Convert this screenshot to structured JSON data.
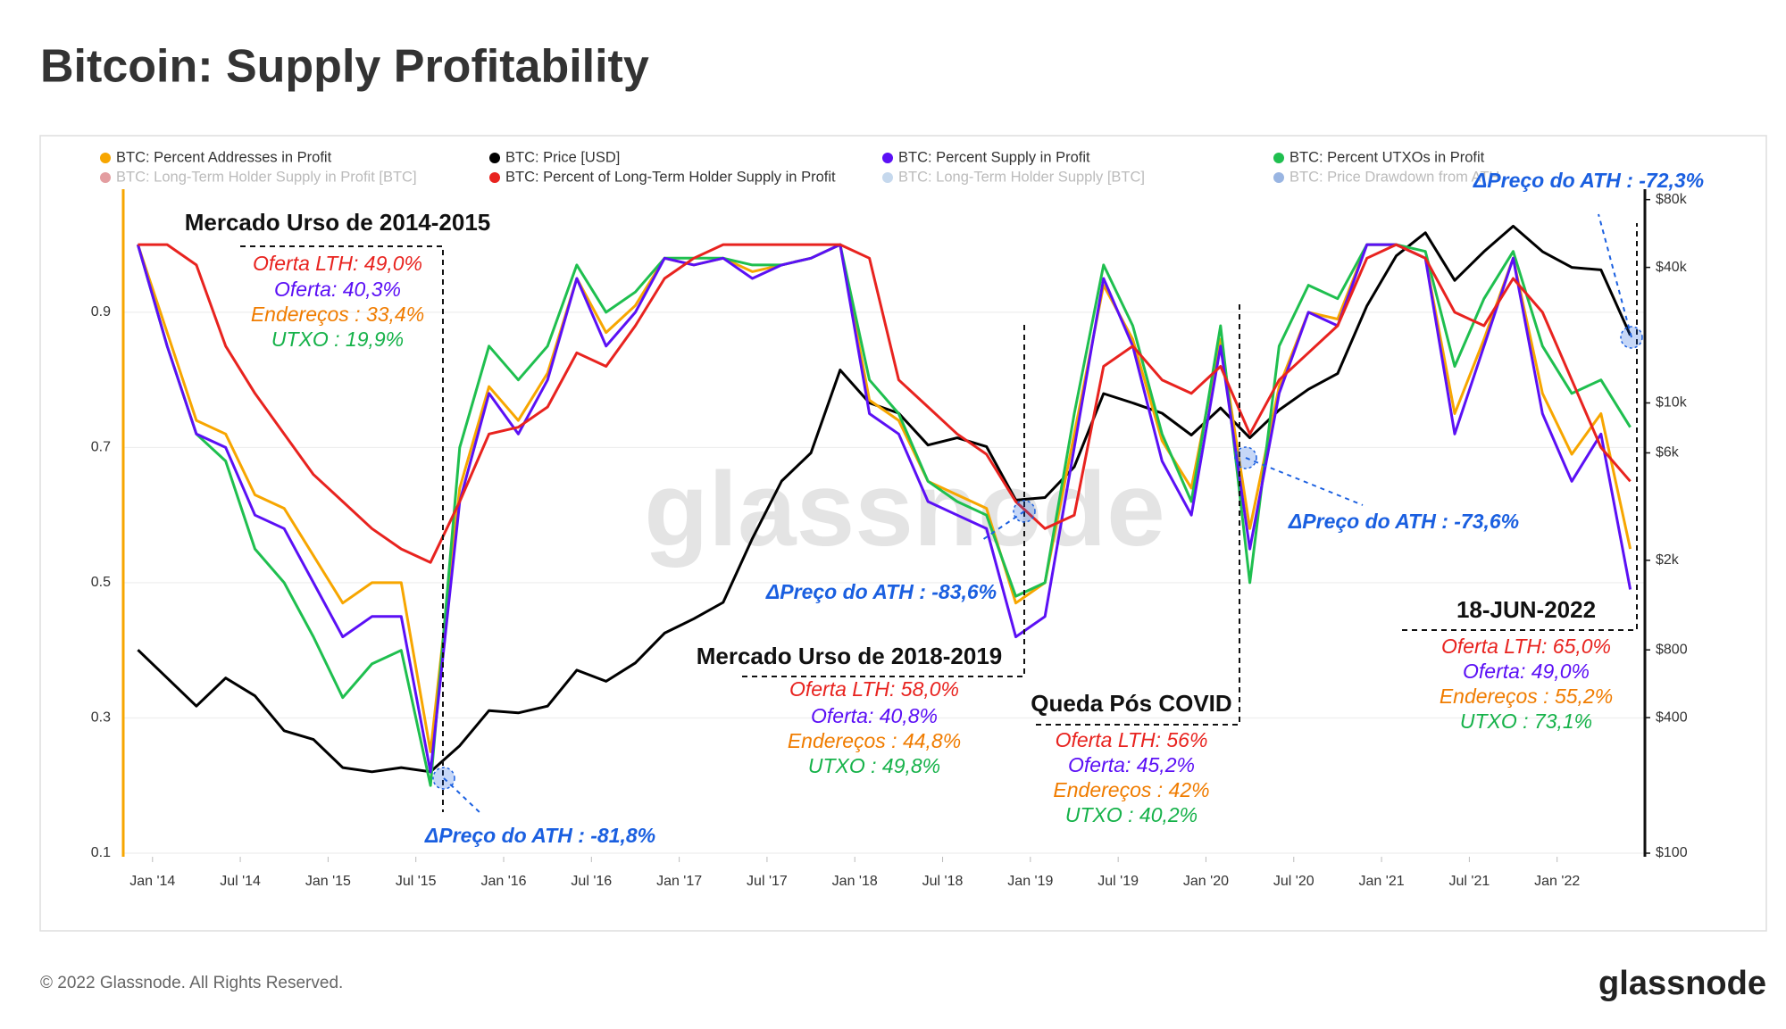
{
  "title": "Bitcoin: Supply Profitability",
  "footer": "© 2022 Glassnode. All Rights Reserved.",
  "logo": "glassnode",
  "watermark": "glassnode",
  "chart_data": {
    "type": "line",
    "x": [
      "2013-12",
      "2014-02",
      "2014-04",
      "2014-06",
      "2014-08",
      "2014-10",
      "2014-12",
      "2015-02",
      "2015-04",
      "2015-06",
      "2015-08",
      "2015-10",
      "2015-12",
      "2016-02",
      "2016-04",
      "2016-06",
      "2016-08",
      "2016-10",
      "2016-12",
      "2017-02",
      "2017-04",
      "2017-06",
      "2017-08",
      "2017-10",
      "2017-12",
      "2018-02",
      "2018-04",
      "2018-06",
      "2018-08",
      "2018-10",
      "2018-12",
      "2019-02",
      "2019-04",
      "2019-06",
      "2019-08",
      "2019-10",
      "2019-12",
      "2020-02",
      "2020-04",
      "2020-06",
      "2020-08",
      "2020-10",
      "2020-12",
      "2021-02",
      "2021-04",
      "2021-06",
      "2021-08",
      "2021-10",
      "2021-12",
      "2022-02",
      "2022-04",
      "2022-06"
    ],
    "series": [
      {
        "name": "BTC: Percent Addresses in Profit",
        "color": "#f7a600",
        "values": [
          1.0,
          0.87,
          0.74,
          0.72,
          0.63,
          0.61,
          0.54,
          0.47,
          0.5,
          0.5,
          0.25,
          0.64,
          0.79,
          0.74,
          0.81,
          0.95,
          0.87,
          0.91,
          0.98,
          0.97,
          0.98,
          0.96,
          0.97,
          0.98,
          1.0,
          0.77,
          0.74,
          0.65,
          0.63,
          0.61,
          0.47,
          0.5,
          0.72,
          0.94,
          0.86,
          0.71,
          0.64,
          0.86,
          0.58,
          0.79,
          0.9,
          0.89,
          1.0,
          1.0,
          0.98,
          0.75,
          0.86,
          0.98,
          0.78,
          0.69,
          0.75,
          0.55
        ]
      },
      {
        "name": "BTC: Price [USD]",
        "color": "#000000",
        "axis": "y2",
        "values": [
          800,
          600,
          450,
          600,
          500,
          350,
          320,
          240,
          230,
          240,
          230,
          300,
          430,
          420,
          450,
          650,
          580,
          700,
          950,
          1100,
          1300,
          2500,
          4500,
          6000,
          14000,
          10000,
          9000,
          6500,
          7000,
          6400,
          3700,
          3800,
          5200,
          11000,
          10000,
          9000,
          7200,
          9500,
          7000,
          9300,
          11500,
          13500,
          27000,
          45000,
          57000,
          35000,
          47000,
          61000,
          47000,
          40000,
          39000,
          20000
        ]
      },
      {
        "name": "BTC: Percent Supply in Profit",
        "color": "#5b10f5",
        "values": [
          1.0,
          0.85,
          0.72,
          0.7,
          0.6,
          0.58,
          0.5,
          0.42,
          0.45,
          0.45,
          0.22,
          0.62,
          0.78,
          0.72,
          0.8,
          0.95,
          0.85,
          0.9,
          0.98,
          0.97,
          0.98,
          0.95,
          0.97,
          0.98,
          1.0,
          0.75,
          0.72,
          0.62,
          0.6,
          0.58,
          0.42,
          0.45,
          0.7,
          0.95,
          0.85,
          0.68,
          0.6,
          0.85,
          0.55,
          0.78,
          0.9,
          0.88,
          1.0,
          1.0,
          0.98,
          0.72,
          0.85,
          0.98,
          0.75,
          0.65,
          0.72,
          0.49
        ]
      },
      {
        "name": "BTC: Percent UTXOs in Profit",
        "color": "#1fbf4f",
        "values": [
          1.0,
          0.85,
          0.72,
          0.68,
          0.55,
          0.5,
          0.42,
          0.33,
          0.38,
          0.4,
          0.2,
          0.7,
          0.85,
          0.8,
          0.85,
          0.97,
          0.9,
          0.93,
          0.98,
          0.98,
          0.98,
          0.97,
          0.97,
          0.98,
          1.0,
          0.8,
          0.75,
          0.65,
          0.62,
          0.6,
          0.48,
          0.5,
          0.75,
          0.97,
          0.88,
          0.72,
          0.62,
          0.88,
          0.5,
          0.85,
          0.94,
          0.92,
          1.0,
          1.0,
          0.99,
          0.82,
          0.92,
          0.99,
          0.85,
          0.78,
          0.8,
          0.73
        ]
      },
      {
        "name": "BTC: Percent of Long-Term Holder Supply in Profit",
        "color": "#e8231f",
        "values": [
          1.0,
          1.0,
          0.97,
          0.85,
          0.78,
          0.72,
          0.66,
          0.62,
          0.58,
          0.55,
          0.53,
          0.62,
          0.72,
          0.73,
          0.76,
          0.84,
          0.82,
          0.88,
          0.95,
          0.98,
          1.0,
          1.0,
          1.0,
          1.0,
          1.0,
          0.98,
          0.8,
          0.76,
          0.72,
          0.69,
          0.62,
          0.58,
          0.6,
          0.82,
          0.85,
          0.8,
          0.78,
          0.82,
          0.72,
          0.8,
          0.84,
          0.88,
          0.98,
          1.0,
          0.98,
          0.9,
          0.88,
          0.95,
          0.9,
          0.8,
          0.7,
          0.65
        ]
      }
    ],
    "hidden_series": [
      {
        "name": "BTC: Long-Term Holder Supply in Profit [BTC]",
        "color": "#c0262d"
      },
      {
        "name": "BTC: Long-Term Holder Supply [BTC]",
        "color": "#7fa8d6"
      },
      {
        "name": "BTC: Price Drawdown from ATH",
        "color": "#1d5bbf"
      }
    ],
    "xlim": [
      "2013-11",
      "2022-07"
    ],
    "xticks": [
      {
        "value": "2014-01",
        "label": "Jan '14"
      },
      {
        "value": "2014-07",
        "label": "Jul '14"
      },
      {
        "value": "2015-01",
        "label": "Jan '15"
      },
      {
        "value": "2015-07",
        "label": "Jul '15"
      },
      {
        "value": "2016-01",
        "label": "Jan '16"
      },
      {
        "value": "2016-07",
        "label": "Jul '16"
      },
      {
        "value": "2017-01",
        "label": "Jan '17"
      },
      {
        "value": "2017-07",
        "label": "Jul '17"
      },
      {
        "value": "2018-01",
        "label": "Jan '18"
      },
      {
        "value": "2018-07",
        "label": "Jul '18"
      },
      {
        "value": "2019-01",
        "label": "Jan '19"
      },
      {
        "value": "2019-07",
        "label": "Jul '19"
      },
      {
        "value": "2020-01",
        "label": "Jan '20"
      },
      {
        "value": "2020-07",
        "label": "Jul '20"
      },
      {
        "value": "2021-01",
        "label": "Jan '21"
      },
      {
        "value": "2021-07",
        "label": "Jul '21"
      },
      {
        "value": "2022-01",
        "label": "Jan '22"
      }
    ],
    "ylim": [
      0.1,
      1.082
    ],
    "yticks": [
      0.1,
      0.3,
      0.5,
      0.7,
      0.9
    ],
    "y2lim": [
      100,
      89000
    ],
    "y2_log": true,
    "y2ticks": [
      {
        "value": 100,
        "label": "$100"
      },
      {
        "value": 400,
        "label": "$400"
      },
      {
        "value": 800,
        "label": "$800"
      },
      {
        "value": 2000,
        "label": "$2k"
      },
      {
        "value": 6000,
        "label": "$6k"
      },
      {
        "value": 10000,
        "label": "$10k"
      },
      {
        "value": 40000,
        "label": "$40k"
      },
      {
        "value": 80000,
        "label": "$80k"
      }
    ],
    "grid": true,
    "annotations": [
      {
        "text": "Mercado Urso de 2014-2015",
        "color": "#111111"
      },
      {
        "text": "Oferta LTH: 49,0%",
        "color": "#e8231f"
      },
      {
        "text": "Oferta: 40,3%",
        "color": "#5b10f5"
      },
      {
        "text": "Endereços : 33,4%",
        "color": "#f07c00"
      },
      {
        "text": "UTXO : 19,9%",
        "color": "#16b24a"
      },
      {
        "text": "ΔPreço do ATH : -81,8%",
        "color": "#1a5fe0"
      },
      {
        "text": "ΔPreço do ATH : -83,6%",
        "color": "#1a5fe0"
      },
      {
        "text": "Mercado Urso de 2018-2019",
        "color": "#111111"
      },
      {
        "text": "Oferta LTH: 58,0%",
        "color": "#e8231f"
      },
      {
        "text": "Oferta: 40,8%",
        "color": "#5b10f5"
      },
      {
        "text": "Endereços : 44,8%",
        "color": "#f07c00"
      },
      {
        "text": "UTXO : 49,8%",
        "color": "#16b24a"
      },
      {
        "text": "Queda Pós COVID",
        "color": "#111111"
      },
      {
        "text": "Oferta LTH: 56%",
        "color": "#e8231f"
      },
      {
        "text": "Oferta: 45,2%",
        "color": "#5b10f5"
      },
      {
        "text": "Endereços : 42%",
        "color": "#f07c00"
      },
      {
        "text": "UTXO : 40,2%",
        "color": "#16b24a"
      },
      {
        "text": "ΔPreço do ATH : -73,6%",
        "color": "#1a5fe0"
      },
      {
        "text": "18-JUN-2022",
        "color": "#111111"
      },
      {
        "text": "Oferta LTH: 65,0%",
        "color": "#e8231f"
      },
      {
        "text": "Oferta: 49,0%",
        "color": "#5b10f5"
      },
      {
        "text": "Endereços : 55,2%",
        "color": "#f07c00"
      },
      {
        "text": "UTXO : 73,1%",
        "color": "#16b24a"
      },
      {
        "text": "ΔPreço do ATH : -72,3%",
        "color": "#1a5fe0"
      }
    ]
  }
}
